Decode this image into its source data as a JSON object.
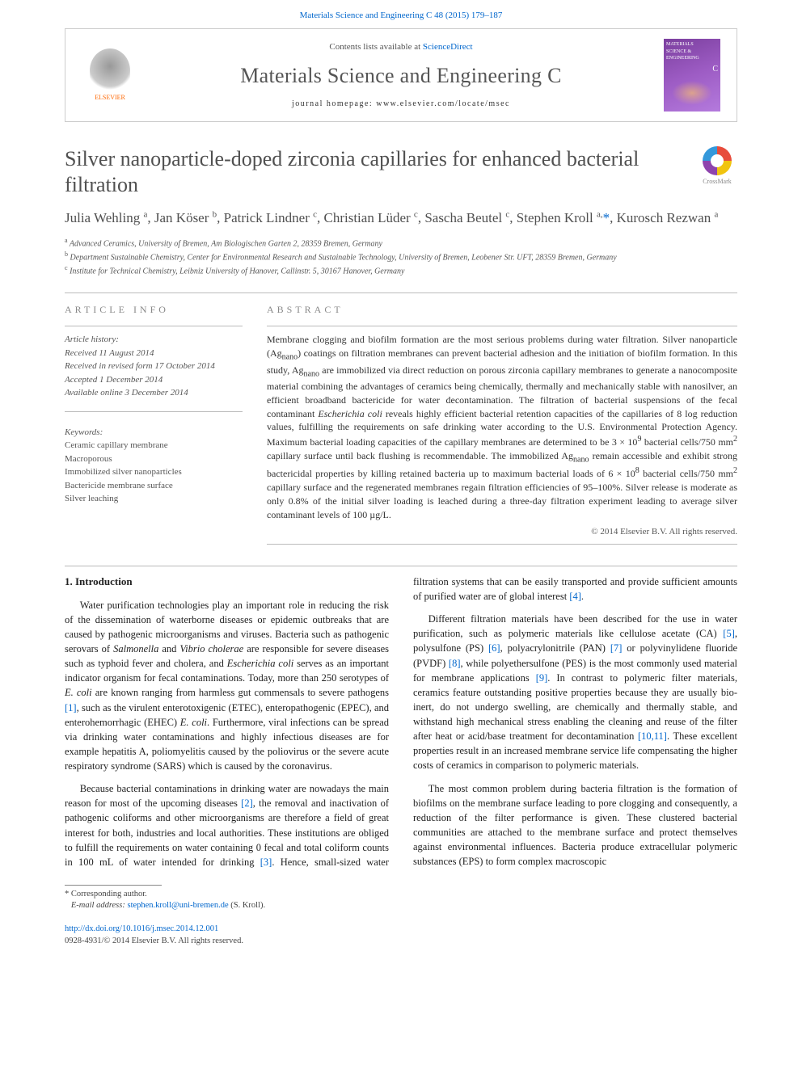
{
  "top_citation": "Materials Science and Engineering C 48 (2015) 179–187",
  "header": {
    "contents_prefix": "Contents lists available at ",
    "contents_link": "ScienceDirect",
    "journal_name": "Materials Science and Engineering C",
    "homepage_prefix": "journal homepage: ",
    "homepage_url": "www.elsevier.com/locate/msec",
    "elsevier_label": "ELSEVIER",
    "cover_label_1": "MATERIALS",
    "cover_label_2": "SCIENCE &",
    "cover_label_3": "ENGINEERING",
    "cover_label_4": "C"
  },
  "article": {
    "title": "Silver nanoparticle-doped zirconia capillaries for enhanced bacterial filtration",
    "crossmark_label": "CrossMark",
    "authors_html": "Julia Wehling <sup>a</sup>, Jan Köser <sup>b</sup>, Patrick Lindner <sup>c</sup>, Christian Lüder <sup>c</sup>, Sascha Beutel <sup>c</sup>, Stephen Kroll <sup>a,</sup><span class=\"ast\">*</span>, Kurosch Rezwan <sup>a</sup>",
    "affiliations": [
      {
        "sup": "a",
        "text": "Advanced Ceramics, University of Bremen, Am Biologischen Garten 2, 28359 Bremen, Germany"
      },
      {
        "sup": "b",
        "text": "Department Sustainable Chemistry, Center for Environmental Research and Sustainable Technology, University of Bremen, Leobener Str. UFT, 28359 Bremen, Germany"
      },
      {
        "sup": "c",
        "text": "Institute for Technical Chemistry, Leibniz University of Hanover, Callinstr. 5, 30167 Hanover, Germany"
      }
    ]
  },
  "info": {
    "heading": "ARTICLE INFO",
    "history_label": "Article history:",
    "history": [
      "Received 11 August 2014",
      "Received in revised form 17 October 2014",
      "Accepted 1 December 2014",
      "Available online 3 December 2014"
    ],
    "keywords_label": "Keywords:",
    "keywords": [
      "Ceramic capillary membrane",
      "Macroporous",
      "Immobilized silver nanoparticles",
      "Bactericide membrane surface",
      "Silver leaching"
    ]
  },
  "abstract": {
    "heading": "ABSTRACT",
    "text": "Membrane clogging and biofilm formation are the most serious problems during water filtration. Silver nanoparticle (Ag<sub>nano</sub>) coatings on filtration membranes can prevent bacterial adhesion and the initiation of biofilm formation. In this study, Ag<sub>nano</sub> are immobilized via direct reduction on porous zirconia capillary membranes to generate a nanocomposite material combining the advantages of ceramics being chemically, thermally and mechanically stable with nanosilver, an efficient broadband bactericide for water decontamination. The filtration of bacterial suspensions of the fecal contaminant <i>Escherichia coli</i> reveals highly efficient bacterial retention capacities of the capillaries of 8 log reduction values, fulfilling the requirements on safe drinking water according to the U.S. Environmental Protection Agency. Maximum bacterial loading capacities of the capillary membranes are determined to be 3 × 10<sup>9</sup> bacterial cells/750 mm<sup>2</sup> capillary surface until back flushing is recommendable. The immobilized Ag<sub>nano</sub> remain accessible and exhibit strong bactericidal properties by killing retained bacteria up to maximum bacterial loads of 6 × 10<sup>8</sup> bacterial cells/750 mm<sup>2</sup> capillary surface and the regenerated membranes regain filtration efficiencies of 95–100%. Silver release is moderate as only 0.8% of the initial silver loading is leached during a three-day filtration experiment leading to average silver contaminant levels of 100 µg/L.",
    "copyright": "© 2014 Elsevier B.V. All rights reserved."
  },
  "body": {
    "intro_heading": "1. Introduction",
    "paragraphs": [
      "Water purification technologies play an important role in reducing the risk of the dissemination of waterborne diseases or epidemic outbreaks that are caused by pathogenic microorganisms and viruses. Bacteria such as pathogenic serovars of <i>Salmonella</i> and <i>Vibrio cholerae</i> are responsible for severe diseases such as typhoid fever and cholera, and <i>Escherichia coli</i> serves as an important indicator organism for fecal contaminations. Today, more than 250 serotypes of <i>E. coli</i> are known ranging from harmless gut commensals to severe pathogens <span class=\"ref\">[1]</span>, such as the virulent enterotoxigenic (ETEC), enteropathogenic (EPEC), and enterohemorrhagic (EHEC) <i>E. coli</i>. Furthermore, viral infections can be spread via drinking water contaminations and highly infectious diseases are for example hepatitis A, poliomyelitis caused by the poliovirus or the severe acute respiratory syndrome (SARS) which is caused by the coronavirus.",
      "Because bacterial contaminations in drinking water are nowadays the main reason for most of the upcoming diseases <span class=\"ref\">[2]</span>, the removal and inactivation of pathogenic coliforms and other microorganisms are therefore a field of great interest for both, industries and local authorities. These institutions are obliged to fulfill the requirements on water containing 0 fecal and total coliform counts in 100 mL of water intended for drinking <span class=\"ref\">[3]</span>. Hence, small-sized water filtration systems that can be easily transported and provide sufficient amounts of purified water are of global interest <span class=\"ref\">[4]</span>.",
      "Different filtration materials have been described for the use in water purification, such as polymeric materials like cellulose acetate (CA) <span class=\"ref\">[5]</span>, polysulfone (PS) <span class=\"ref\">[6]</span>, polyacrylonitrile (PAN) <span class=\"ref\">[7]</span> or polyvinylidene fluoride (PVDF) <span class=\"ref\">[8]</span>, while polyethersulfone (PES) is the most commonly used material for membrane applications <span class=\"ref\">[9]</span>. In contrast to polymeric filter materials, ceramics feature outstanding positive properties because they are usually bio-inert, do not undergo swelling, are chemically and thermally stable, and withstand high mechanical stress enabling the cleaning and reuse of the filter after heat or acid/base treatment for decontamination <span class=\"ref\">[10,11]</span>. These excellent properties result in an increased membrane service life compensating the higher costs of ceramics in comparison to polymeric materials.",
      "The most common problem during bacteria filtration is the formation of biofilms on the membrane surface leading to pore clogging and consequently, a reduction of the filter performance is given. These clustered bacterial communities are attached to the membrane surface and protect themselves against environmental influences. Bacteria produce extracellular polymeric substances (EPS) to form complex macroscopic"
    ]
  },
  "footer": {
    "corr_label": "* Corresponding author.",
    "email_label": "E-mail address:",
    "email": "stephen.kroll@uni-bremen.de",
    "email_author": "(S. Kroll).",
    "doi": "http://dx.doi.org/10.1016/j.msec.2014.12.001",
    "issn_line": "0928-4931/© 2014 Elsevier B.V. All rights reserved."
  },
  "colors": {
    "link": "#0066cc",
    "heading_gray": "#888888",
    "text": "#333333",
    "rule": "#bbbbbb"
  }
}
